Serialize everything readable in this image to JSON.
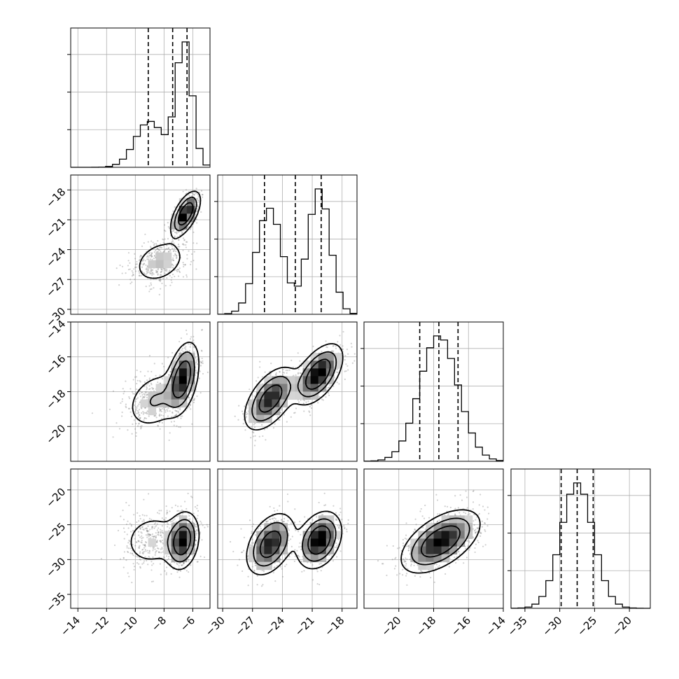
{
  "chart_data": {
    "type": "corner",
    "title": "",
    "grid": true,
    "parameters": [
      {
        "index": 0,
        "range": [
          -14.5,
          -4.8
        ],
        "ticks": [
          -14,
          -12,
          -10,
          -8,
          -6
        ],
        "tick_labels": [
          "−14",
          "−12",
          "−10",
          "−8",
          "−6"
        ],
        "mode1": {
          "mean": -9.0,
          "sd": 1.0,
          "weight": 0.4
        },
        "mode2": {
          "mean": -6.6,
          "sd": 0.55,
          "weight": 0.6
        },
        "quantiles": [
          -9.1,
          -7.4,
          -6.4
        ],
        "hist_rel_max": 1.0
      },
      {
        "index": 1,
        "range": [
          -30.5,
          -16.5
        ],
        "ticks": [
          -30,
          -27,
          -24,
          -21,
          -18
        ],
        "tick_labels": [
          "−30",
          "−27",
          "−24",
          "−21",
          "−18"
        ],
        "mode1": {
          "mean": -25.3,
          "sd": 1.3,
          "weight": 0.5
        },
        "mode2": {
          "mean": -20.3,
          "sd": 1.1,
          "weight": 0.5
        },
        "quantiles": [
          -25.8,
          -22.7,
          -20.1
        ],
        "hist_rel_max": 1.0
      },
      {
        "index": 2,
        "range": [
          -22,
          -14
        ],
        "ticks": [
          -20,
          -18,
          -16,
          -14
        ],
        "tick_labels": [
          "−20",
          "−18",
          "−16",
          "−14"
        ],
        "mode1": {
          "mean": -17.7,
          "sd": 1.1,
          "weight": 1.0
        },
        "mode2": null,
        "quantiles": [
          -18.8,
          -17.7,
          -16.6
        ],
        "hist_rel_max": 1.0
      },
      {
        "index": 3,
        "range": [
          -37,
          -17
        ],
        "ticks": [
          -35,
          -30,
          -25,
          -20
        ],
        "tick_labels": [
          "−35",
          "−30",
          "−25",
          "−20"
        ],
        "mode1": {
          "mean": -27.5,
          "sd": 2.3,
          "weight": 1.0
        },
        "mode2": null,
        "quantiles": [
          -29.8,
          -27.5,
          -25.2
        ],
        "hist_rel_max": 1.0
      }
    ],
    "pairs": [
      {
        "row": 1,
        "col": 0,
        "peaks": [
          {
            "x": -8.3,
            "y": -25.2,
            "sx": 1.0,
            "sy": 1.2,
            "rho": 0.3,
            "w": 0.45
          },
          {
            "x": -6.5,
            "y": -20.4,
            "sx": 0.5,
            "sy": 1.1,
            "rho": 0.6,
            "w": 0.55
          }
        ]
      },
      {
        "row": 2,
        "col": 0,
        "peaks": [
          {
            "x": -8.6,
            "y": -18.5,
            "sx": 1.1,
            "sy": 0.9,
            "rho": 0.3,
            "w": 0.4
          },
          {
            "x": -6.7,
            "y": -17.2,
            "sx": 0.55,
            "sy": 1.0,
            "rho": 0.4,
            "w": 0.6
          }
        ]
      },
      {
        "row": 2,
        "col": 1,
        "peaks": [
          {
            "x": -25.2,
            "y": -18.4,
            "sx": 1.3,
            "sy": 0.9,
            "rho": 0.55,
            "w": 0.5
          },
          {
            "x": -20.4,
            "y": -17.0,
            "sx": 1.2,
            "sy": 0.85,
            "rho": 0.55,
            "w": 0.5
          }
        ]
      },
      {
        "row": 3,
        "col": 0,
        "peaks": [
          {
            "x": -8.8,
            "y": -27.2,
            "sx": 1.2,
            "sy": 2.2,
            "rho": 0.1,
            "w": 0.4
          },
          {
            "x": -6.7,
            "y": -27.3,
            "sx": 0.55,
            "sy": 2.0,
            "rho": 0.2,
            "w": 0.6
          }
        ]
      },
      {
        "row": 3,
        "col": 1,
        "peaks": [
          {
            "x": -25.2,
            "y": -27.8,
            "sx": 1.2,
            "sy": 2.2,
            "rho": 0.4,
            "w": 0.5
          },
          {
            "x": -20.3,
            "y": -27.2,
            "sx": 1.1,
            "sy": 2.0,
            "rho": 0.3,
            "w": 0.5
          }
        ]
      },
      {
        "row": 3,
        "col": 2,
        "peaks": [
          {
            "x": -17.6,
            "y": -27.4,
            "sx": 1.1,
            "sy": 2.2,
            "rho": 0.55,
            "w": 1.0
          }
        ]
      }
    ]
  }
}
